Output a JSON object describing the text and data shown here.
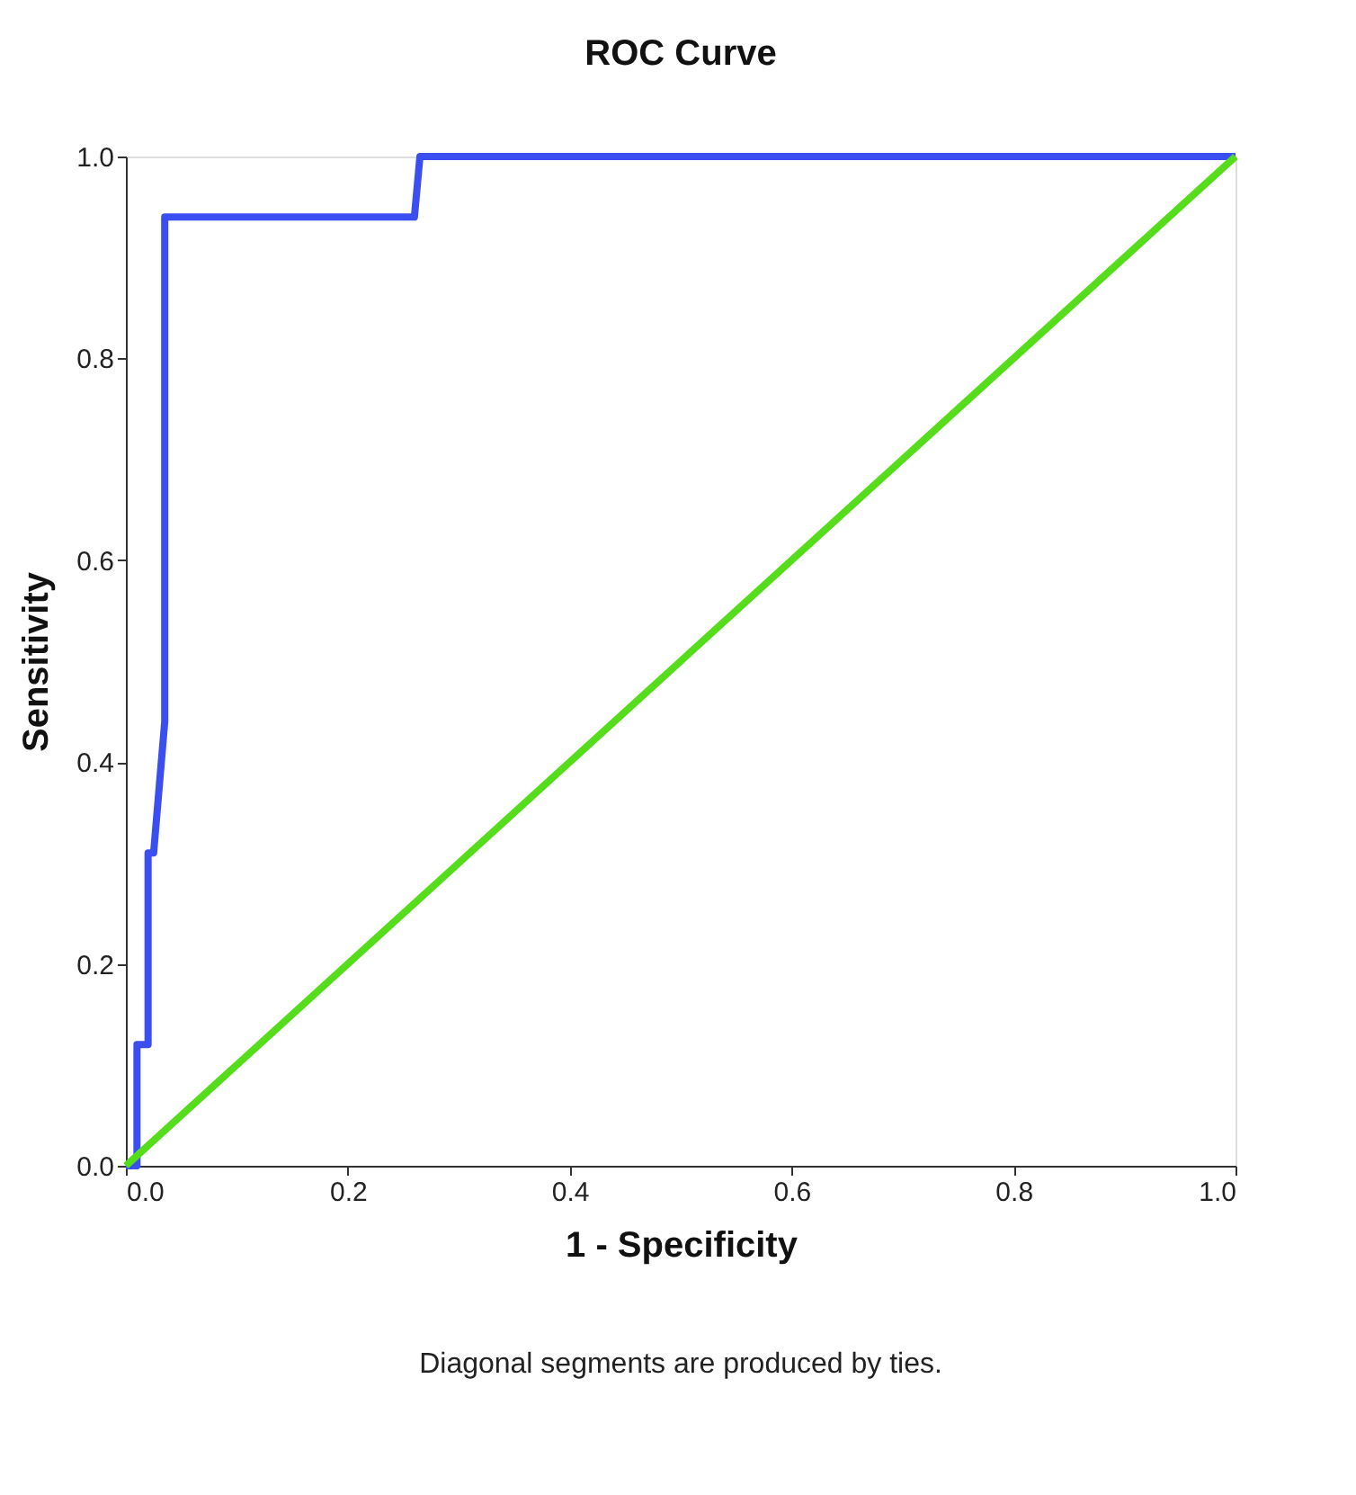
{
  "chart_data": {
    "type": "line",
    "title": "ROC Curve",
    "xlabel": "1 - Specificity",
    "ylabel": "Sensitivity",
    "xlim": [
      0,
      1
    ],
    "ylim": [
      0,
      1
    ],
    "xticks": [
      {
        "value": 0,
        "label": "0.0"
      },
      {
        "value": 0.2,
        "label": "0.2"
      },
      {
        "value": 0.4,
        "label": "0.4"
      },
      {
        "value": 0.6,
        "label": "0.6"
      },
      {
        "value": 0.8,
        "label": "0.8"
      },
      {
        "value": 1,
        "label": "1.0"
      }
    ],
    "yticks": [
      {
        "value": 0,
        "label": "0.0"
      },
      {
        "value": 0.2,
        "label": "0.2"
      },
      {
        "value": 0.4,
        "label": "0.4"
      },
      {
        "value": 0.6,
        "label": "0.6"
      },
      {
        "value": 0.8,
        "label": "0.8"
      },
      {
        "value": 1,
        "label": "1.0"
      }
    ],
    "marker": "none",
    "line_style": "solid",
    "annotations": [
      "Diagonal segments are produced by ties."
    ],
    "series": [
      {
        "color": "#3b4ff0",
        "x": [
          0,
          0.01,
          0.01,
          0.02,
          0.02,
          0.025,
          0.035,
          0.035,
          0.26,
          0.265,
          1
        ],
        "values": [
          0,
          0,
          0.12,
          0.12,
          0.31,
          0.31,
          0.44,
          0.94,
          0.94,
          1,
          1
        ]
      },
      {
        "color": "#55dd1c",
        "x": [
          0,
          1
        ],
        "values": [
          0,
          1
        ]
      }
    ]
  }
}
